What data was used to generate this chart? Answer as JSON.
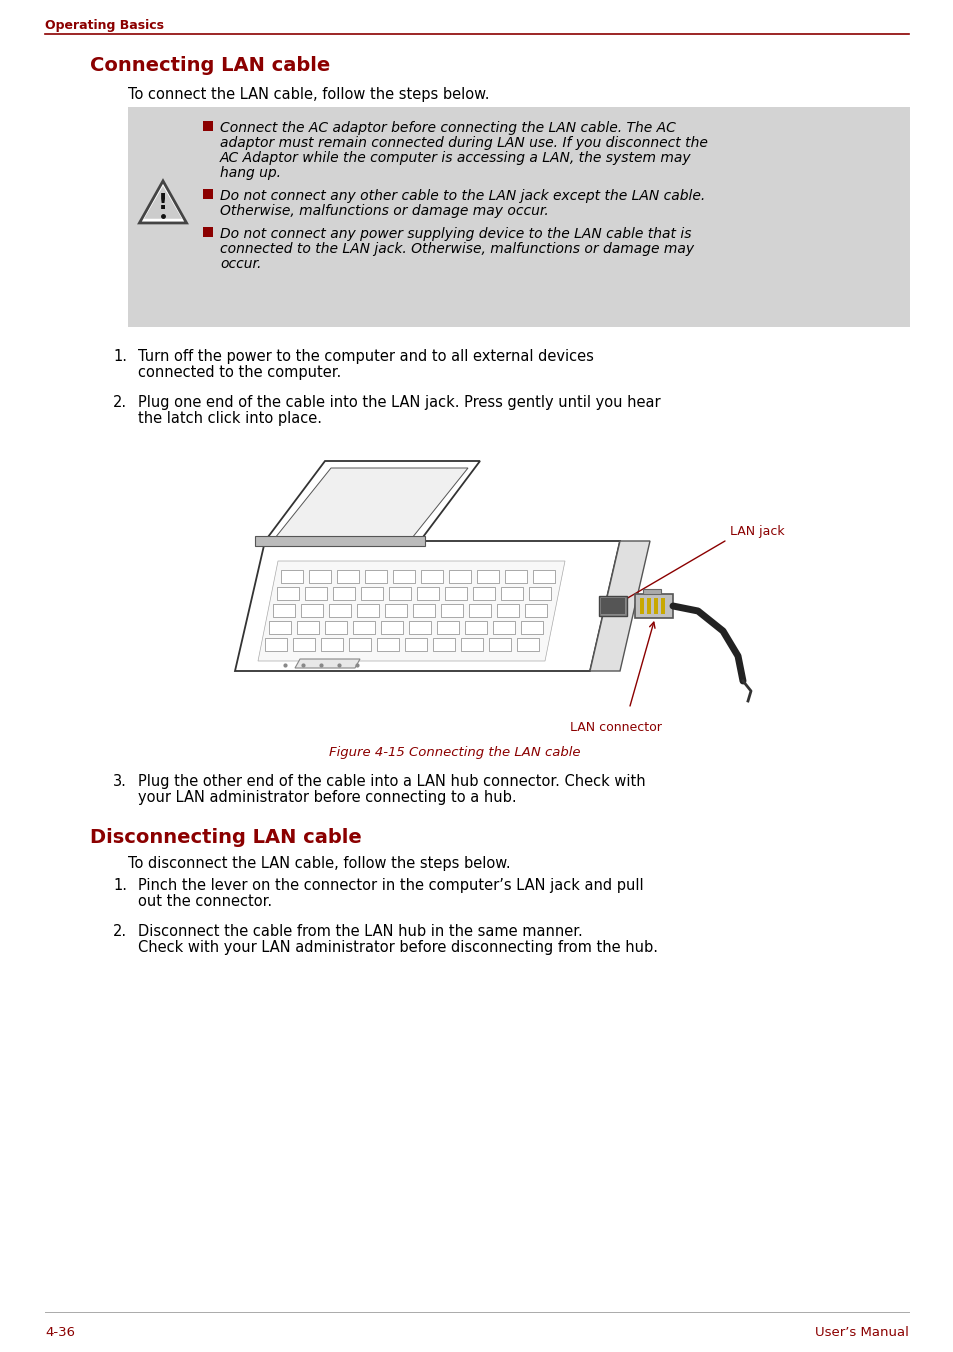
{
  "page_bg": "#ffffff",
  "header_text": "Operating Basics",
  "header_color": "#8b0000",
  "header_line_color": "#8b0000",
  "title1": "Connecting LAN cable",
  "title1_color": "#8b0000",
  "title2": "Disconnecting LAN cable",
  "title2_color": "#8b0000",
  "intro1": "To connect the LAN cable, follow the steps below.",
  "intro2": "To disconnect the LAN cable, follow the steps below.",
  "warning_bg": "#d3d3d3",
  "warning_text_color": "#000000",
  "warning_bullets": [
    "Connect the AC adaptor before connecting the LAN cable. The AC\nadaptor must remain connected during LAN use. If you disconnect the\nAC Adaptor while the computer is accessing a LAN, the system may\nhang up.",
    "Do not connect any other cable to the LAN jack except the LAN cable.\nOtherwise, malfunctions or damage may occur.",
    "Do not connect any power supplying device to the LAN cable that is\nconnected to the LAN jack. Otherwise, malfunctions or damage may\noccur."
  ],
  "bullet_color": "#8b0000",
  "steps_connect": [
    [
      "Turn off the power to the computer and to all external devices",
      "connected to the computer."
    ],
    [
      "Plug one end of the cable into the LAN jack. Press gently until you hear",
      "the latch click into place."
    ],
    [
      "Plug the other end of the cable into a LAN hub connector. Check with",
      "your LAN administrator before connecting to a hub."
    ]
  ],
  "steps_disconnect": [
    [
      "Pinch the lever on the connector in the computer’s LAN jack and pull",
      "out the connector."
    ],
    [
      "Disconnect the cable from the LAN hub in the same manner.",
      "Check with your LAN administrator before disconnecting from the hub."
    ]
  ],
  "figure_caption": "Figure 4-15 Connecting the LAN cable",
  "figure_caption_color": "#8b0000",
  "lan_jack_label": "LAN jack",
  "lan_connector_label": "LAN connector",
  "label_color": "#8b0000",
  "footer_left": "4-36",
  "footer_right": "User’s Manual",
  "footer_color": "#8b0000",
  "text_color": "#000000",
  "body_fontsize": 10.5,
  "title_fontsize": 14,
  "header_fontsize": 9,
  "warning_fontsize": 10,
  "caption_fontsize": 9.5
}
